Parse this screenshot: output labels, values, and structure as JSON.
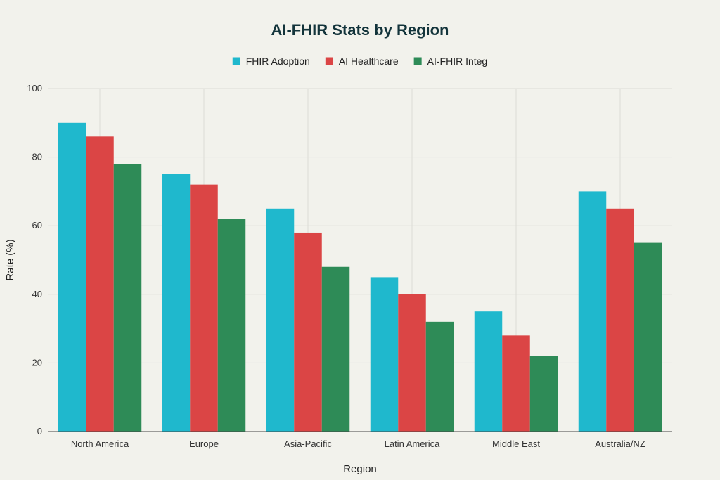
{
  "chart_data": {
    "type": "bar",
    "title": "AI-FHIR Stats by Region",
    "xlabel": "Region",
    "ylabel": "Rate (%)",
    "ylim": [
      0,
      100
    ],
    "yticks": [
      0,
      20,
      40,
      60,
      80,
      100
    ],
    "grid": true,
    "legend_position": "top-center",
    "categories": [
      "North America",
      "Europe",
      "Asia-Pacific",
      "Latin America",
      "Middle East",
      "Australia/NZ"
    ],
    "series": [
      {
        "name": "FHIR Adoption",
        "color": "#1fb8cd",
        "values": [
          90,
          75,
          65,
          45,
          35,
          70
        ]
      },
      {
        "name": "AI Healthcare",
        "color": "#db4545",
        "values": [
          86,
          72,
          58,
          40,
          28,
          65
        ]
      },
      {
        "name": "AI-FHIR Integ",
        "color": "#2e8b57",
        "values": [
          78,
          62,
          48,
          32,
          22,
          55
        ]
      }
    ]
  }
}
